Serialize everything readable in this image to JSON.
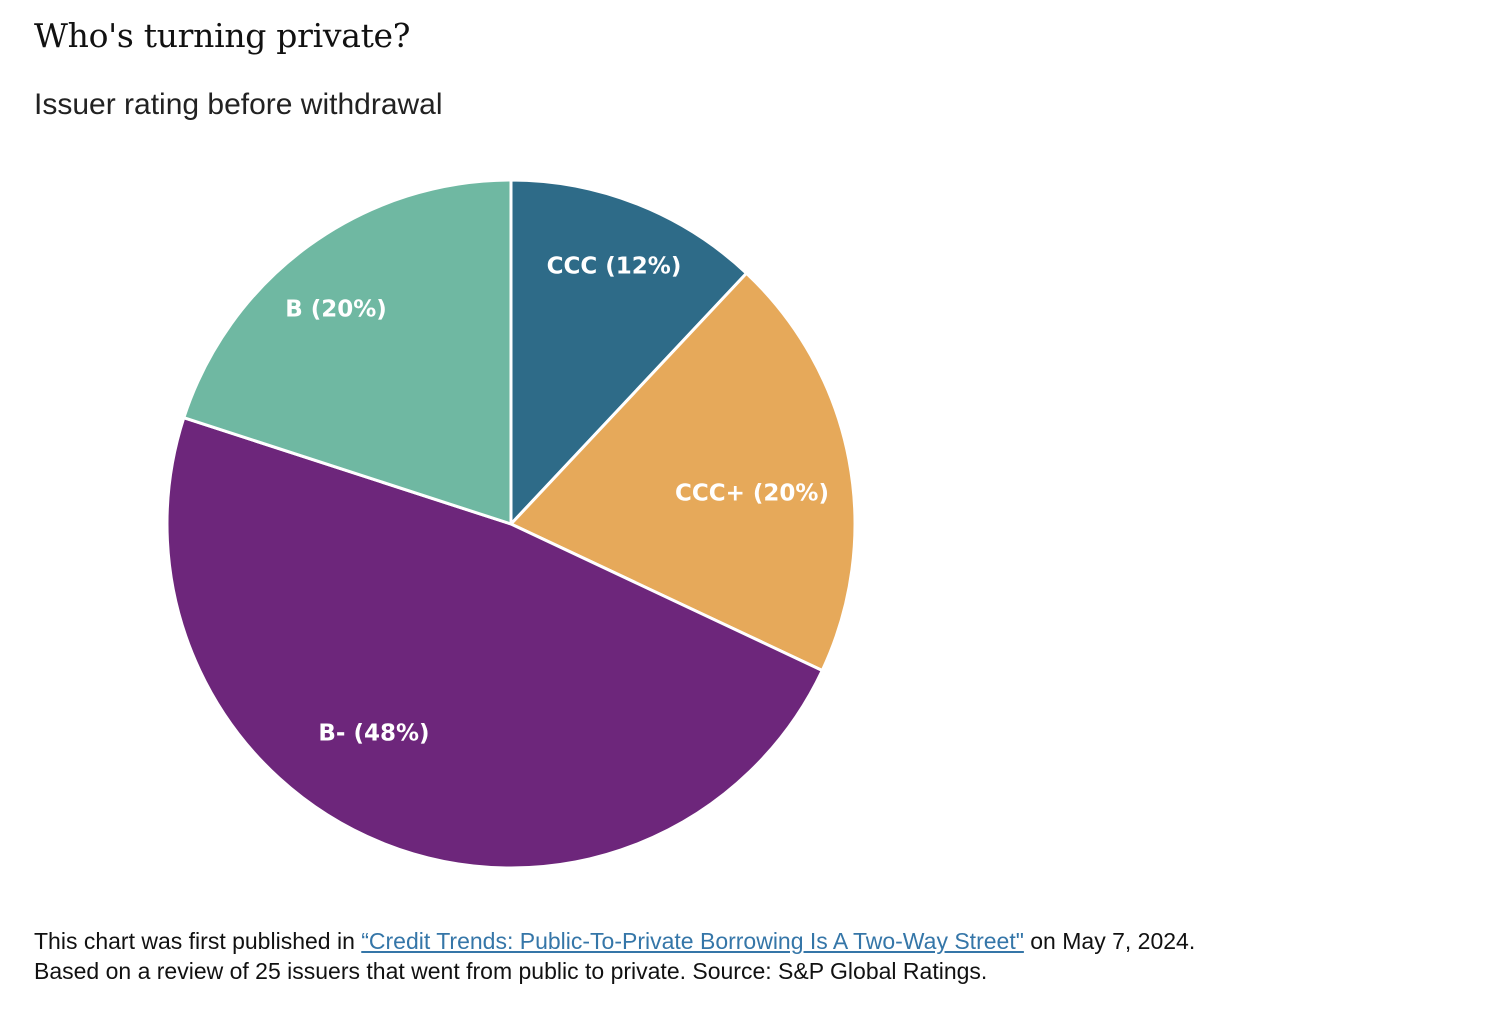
{
  "header": {
    "title": "Who's turning private?",
    "subtitle": "Issuer rating before withdrawal"
  },
  "chart_data": {
    "type": "pie",
    "start_angle_deg": 0,
    "direction": "clockwise",
    "slices": [
      {
        "label": "CCC",
        "value": 12,
        "display": "CCC (12%)",
        "color": "#2e6b88"
      },
      {
        "label": "CCC+",
        "value": 20,
        "display": "CCC+ (20%)",
        "color": "#e6a95a"
      },
      {
        "label": "B-",
        "value": 48,
        "display": "B- (48%)",
        "color": "#6d267b"
      },
      {
        "label": "B",
        "value": 20,
        "display": "B (20%)",
        "color": "#6fb8a2"
      }
    ]
  },
  "footnote": {
    "line1_prefix": "This chart was first published in ",
    "link_text": "“Credit Trends: Public-To-Private Borrowing Is A Two-Way Street\"",
    "line1_suffix": "  on May 7, 2024.",
    "line2": "Based on a review of 25 issuers that went from public to private. Source: S&P Global Ratings.",
    "link_color": "#3576a8"
  }
}
